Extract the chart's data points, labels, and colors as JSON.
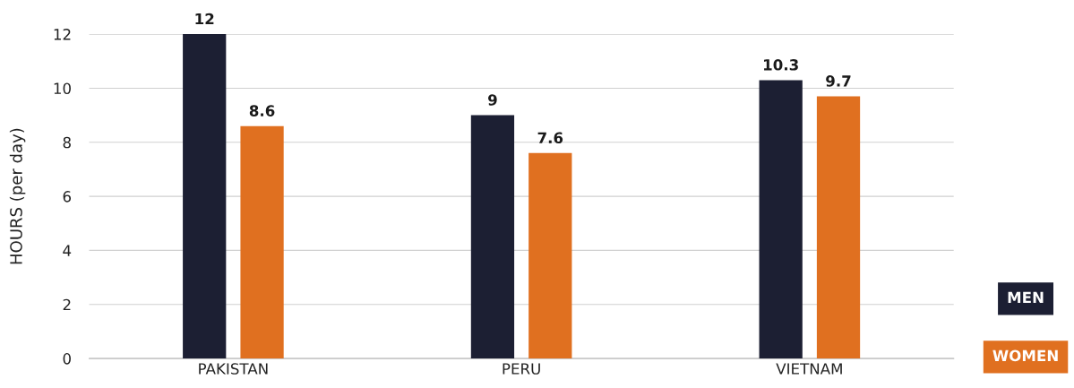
{
  "chart_data": {
    "type": "bar",
    "ylabel": "HOURS (per day)",
    "categories": [
      "PAKISTAN",
      "PERU",
      "VIETNAM"
    ],
    "series": [
      {
        "name": "MEN",
        "color": "#1c1f33",
        "values": [
          12,
          9,
          10.3
        ]
      },
      {
        "name": "WOMEN",
        "color": "#e07020",
        "values": [
          8.6,
          7.6,
          9.7
        ]
      }
    ],
    "ylim": [
      0,
      12
    ],
    "yticks": [
      0,
      2,
      4,
      6,
      8,
      10,
      12
    ],
    "grid": "y",
    "legend": "bottom right",
    "data_labels": true
  }
}
